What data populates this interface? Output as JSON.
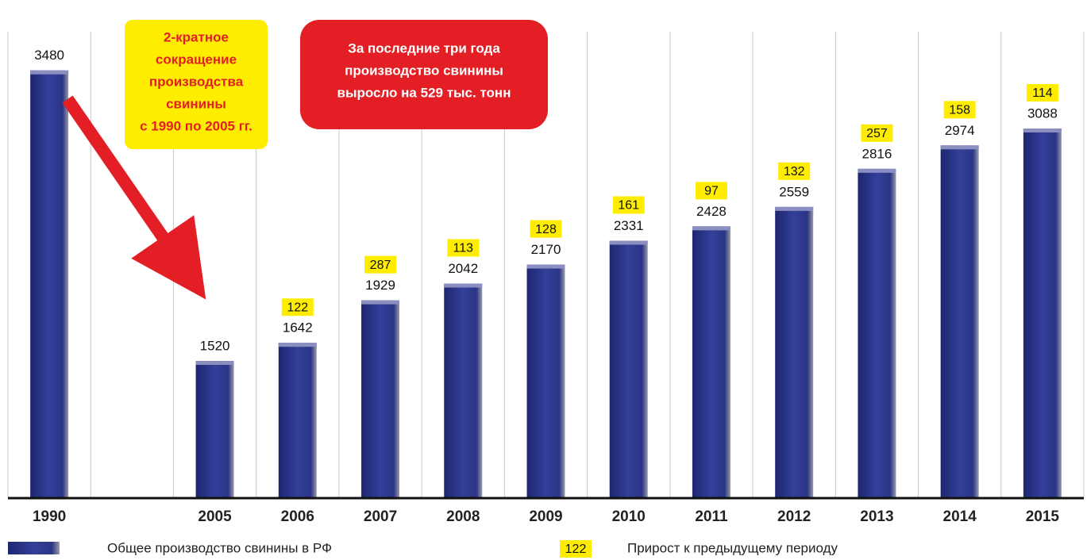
{
  "chart_data": {
    "type": "bar",
    "categories": [
      "1990",
      null,
      "2005",
      "2006",
      "2007",
      "2008",
      "2009",
      "2010",
      "2011",
      "2012",
      "2013",
      "2014",
      "2015"
    ],
    "series": [
      {
        "name": "Общее производство свинины в РФ",
        "color": "#2b3585",
        "values": [
          3480,
          null,
          1520,
          1642,
          1929,
          2042,
          2170,
          2331,
          2428,
          2559,
          2816,
          2974,
          3088
        ]
      },
      {
        "name": "Прирост к предыдущему периоду",
        "color": "#ffed00",
        "values": [
          null,
          null,
          null,
          122,
          287,
          113,
          128,
          161,
          97,
          132,
          257,
          158,
          114
        ]
      }
    ],
    "ylim": [
      600,
      3500
    ],
    "annotations": [
      {
        "lines": [
          "2-кратное",
          "сокращение",
          "производства",
          "свинины",
          "с 1990 по 2005 гг."
        ]
      },
      {
        "lines": [
          "За последние три года",
          "производство свинины",
          "выросло на 529 тыс. тонн"
        ]
      }
    ]
  }
}
